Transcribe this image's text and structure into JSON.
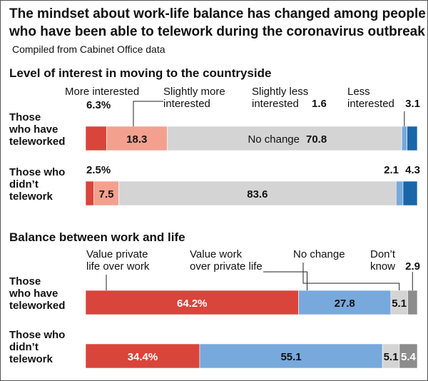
{
  "title_line1": "The mindset about work-life balance has changed among people",
  "title_line2": "who have been able to telework during the coronavirus outbreak",
  "subtitle": "Compiled from Cabinet Office data",
  "colors": {
    "red": "#d9453a",
    "salmon": "#f4a08f",
    "light_gray": "#d4d4d4",
    "light_blue": "#78a9dc",
    "dark_blue": "#1a66a8",
    "dark_gray": "#8c8c8c"
  },
  "chart_data": [
    {
      "type": "bar",
      "stacked": true,
      "orientation": "horizontal",
      "title": "Level of interest in moving to the countryside",
      "categories": [
        [
          "Those",
          "who have",
          "teleworked"
        ],
        [
          "Those who",
          "didn’t",
          "telework"
        ]
      ],
      "series": [
        {
          "name": "More interested",
          "label": [
            "More interested"
          ],
          "values": [
            6.3,
            2.5
          ],
          "display": [
            "6.3%",
            "2.5%"
          ],
          "color": "red"
        },
        {
          "name": "Slightly more interested",
          "label": [
            "Slightly more",
            "interested"
          ],
          "values": [
            18.3,
            7.5
          ],
          "display": [
            "18.3",
            "7.5"
          ],
          "color": "salmon"
        },
        {
          "name": "No change",
          "label": [
            "No change"
          ],
          "values": [
            70.8,
            83.6
          ],
          "display": [
            "70.8",
            "83.6"
          ],
          "color": "light_gray"
        },
        {
          "name": "Slightly less interested",
          "label": [
            "Slightly less",
            "interested"
          ],
          "values": [
            1.6,
            2.1
          ],
          "display": [
            "1.6",
            "2.1"
          ],
          "color": "light_blue"
        },
        {
          "name": "Less interested",
          "label": [
            "Less",
            "interested"
          ],
          "values": [
            3.1,
            4.3
          ],
          "display": [
            "3.1",
            "4.3"
          ],
          "color": "dark_blue"
        }
      ]
    },
    {
      "type": "bar",
      "stacked": true,
      "orientation": "horizontal",
      "title": "Balance between work and life",
      "categories": [
        [
          "Those",
          "who have",
          "teleworked"
        ],
        [
          "Those who",
          "didn’t",
          "telework"
        ]
      ],
      "series": [
        {
          "name": "Value private life over work",
          "label": [
            "Value private",
            "life over work"
          ],
          "values": [
            64.2,
            34.4
          ],
          "display": [
            "64.2%",
            "34.4%"
          ],
          "color": "red"
        },
        {
          "name": "Value work over private life",
          "label": [
            "Value work",
            "over private life"
          ],
          "values": [
            27.8,
            55.1
          ],
          "display": [
            "27.8",
            "55.1"
          ],
          "color": "light_blue"
        },
        {
          "name": "No change",
          "label": [
            "No change"
          ],
          "values": [
            5.1,
            5.1
          ],
          "display": [
            "5.1",
            "5.1"
          ],
          "color": "light_gray"
        },
        {
          "name": "Don’t know",
          "label": [
            "Don’t",
            "know"
          ],
          "values": [
            2.9,
            5.4
          ],
          "display": [
            "2.9",
            "5.4"
          ],
          "color": "dark_gray"
        }
      ]
    }
  ]
}
